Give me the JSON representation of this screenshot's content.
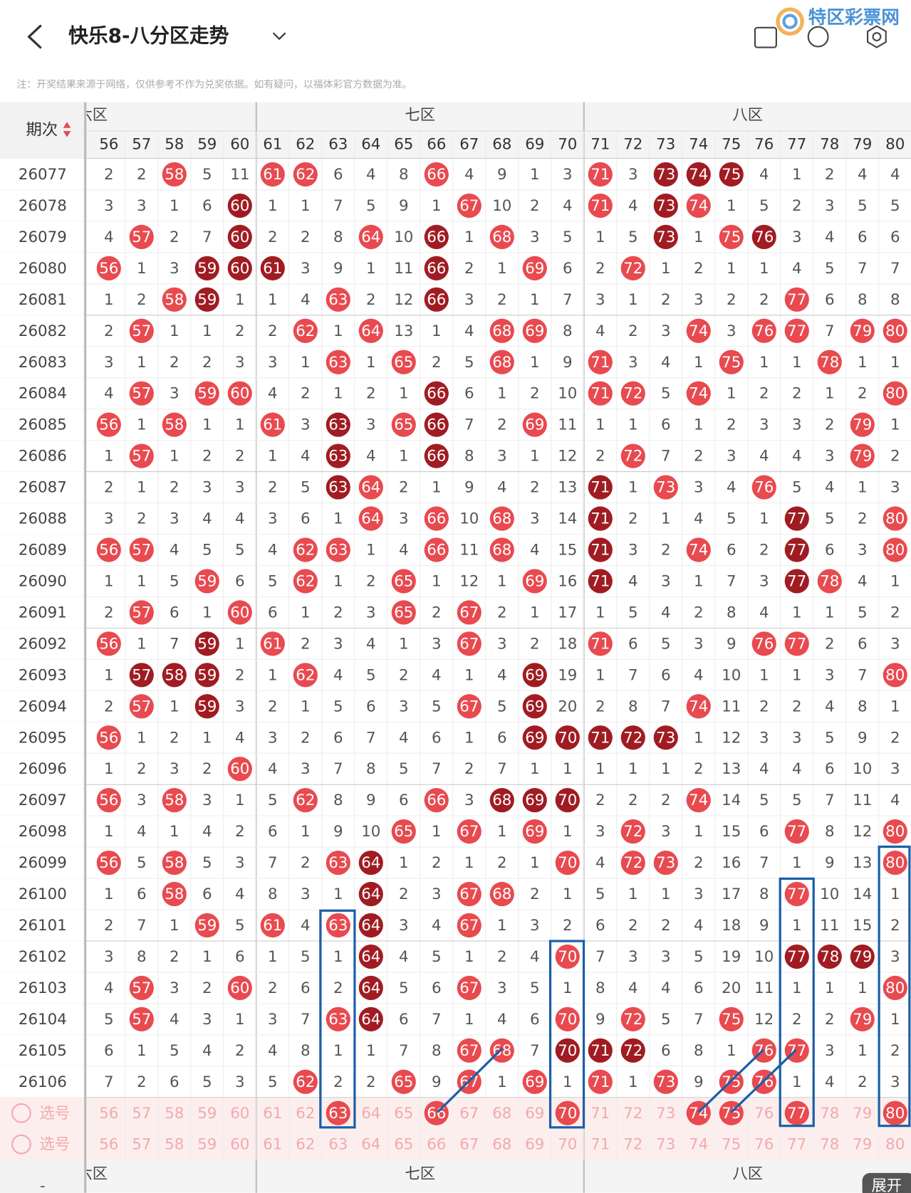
{
  "header": {
    "title": "快乐8-八分区走势",
    "watermark": "特区彩票网"
  },
  "note": "注：开奖结果来源于网络，仅供参考不作为兑奖依据。如有疑问，以福体彩官方数据为准。",
  "table": {
    "period_header": "期次",
    "zones": [
      {
        "name": "六区",
        "columns": [
          56,
          57,
          58,
          59,
          60
        ]
      },
      {
        "name": "七区",
        "columns": [
          61,
          62,
          63,
          64,
          65,
          66,
          67,
          68,
          69,
          70
        ]
      },
      {
        "name": "八区",
        "columns": [
          71,
          72,
          73,
          74,
          75,
          76,
          77,
          78,
          79,
          80
        ]
      }
    ],
    "rows": [
      {
        "period": "26077",
        "cells": [
          2,
          2,
          58,
          5,
          11,
          61,
          62,
          6,
          4,
          8,
          66,
          4,
          9,
          1,
          3,
          71,
          3,
          73,
          74,
          75,
          4,
          1,
          2,
          4,
          4
        ],
        "dark": [
          73,
          74,
          75
        ]
      },
      {
        "period": "26078",
        "cells": [
          3,
          3,
          1,
          6,
          60,
          1,
          1,
          7,
          5,
          9,
          1,
          67,
          10,
          2,
          4,
          71,
          4,
          73,
          74,
          1,
          5,
          2,
          3,
          5,
          5
        ],
        "dark": [
          60,
          73
        ]
      },
      {
        "period": "26079",
        "cells": [
          4,
          57,
          2,
          7,
          60,
          2,
          2,
          8,
          64,
          10,
          66,
          1,
          68,
          3,
          5,
          1,
          5,
          73,
          1,
          75,
          76,
          3,
          4,
          6,
          6
        ],
        "dark": [
          60,
          66,
          73,
          76
        ]
      },
      {
        "period": "26080",
        "cells": [
          56,
          1,
          3,
          59,
          60,
          61,
          3,
          9,
          1,
          11,
          66,
          2,
          1,
          69,
          6,
          2,
          72,
          1,
          2,
          1,
          1,
          4,
          5,
          7,
          7
        ],
        "dark": [
          59,
          60,
          61,
          66
        ]
      },
      {
        "period": "26081",
        "cells": [
          1,
          2,
          58,
          59,
          1,
          1,
          4,
          63,
          2,
          12,
          66,
          3,
          2,
          1,
          7,
          3,
          1,
          2,
          3,
          2,
          2,
          77,
          6,
          8,
          8
        ],
        "dark": [
          59,
          66
        ]
      },
      {
        "period": "26082",
        "cells": [
          2,
          57,
          1,
          1,
          2,
          2,
          62,
          1,
          64,
          13,
          1,
          4,
          68,
          69,
          8,
          4,
          2,
          3,
          74,
          3,
          76,
          77,
          7,
          79,
          80
        ],
        "dark": []
      },
      {
        "period": "26083",
        "cells": [
          3,
          1,
          2,
          2,
          3,
          3,
          1,
          63,
          1,
          65,
          2,
          5,
          68,
          1,
          9,
          71,
          3,
          4,
          1,
          75,
          1,
          1,
          78,
          1,
          1
        ],
        "dark": []
      },
      {
        "period": "26084",
        "cells": [
          4,
          57,
          3,
          59,
          60,
          4,
          2,
          1,
          2,
          1,
          66,
          6,
          1,
          2,
          10,
          71,
          72,
          5,
          74,
          1,
          2,
          2,
          1,
          2,
          80
        ],
        "dark": [
          66
        ]
      },
      {
        "period": "26085",
        "cells": [
          56,
          1,
          58,
          1,
          1,
          61,
          3,
          63,
          3,
          65,
          66,
          7,
          2,
          69,
          11,
          1,
          1,
          6,
          1,
          2,
          3,
          3,
          2,
          79,
          1
        ],
        "dark": [
          63,
          66
        ]
      },
      {
        "period": "26086",
        "cells": [
          1,
          57,
          1,
          2,
          2,
          1,
          4,
          63,
          4,
          1,
          66,
          8,
          3,
          1,
          12,
          2,
          72,
          7,
          2,
          3,
          4,
          4,
          3,
          79,
          2
        ],
        "dark": [
          63,
          66
        ]
      },
      {
        "period": "26087",
        "cells": [
          2,
          1,
          2,
          3,
          3,
          2,
          5,
          63,
          64,
          2,
          1,
          9,
          4,
          2,
          13,
          71,
          1,
          73,
          3,
          4,
          76,
          5,
          4,
          1,
          3
        ],
        "dark": [
          63,
          71
        ]
      },
      {
        "period": "26088",
        "cells": [
          3,
          2,
          3,
          4,
          4,
          3,
          6,
          1,
          64,
          3,
          66,
          10,
          68,
          3,
          14,
          71,
          2,
          1,
          4,
          5,
          1,
          77,
          5,
          2,
          80
        ],
        "dark": [
          71,
          77
        ]
      },
      {
        "period": "26089",
        "cells": [
          56,
          57,
          4,
          5,
          5,
          4,
          62,
          63,
          1,
          4,
          66,
          11,
          68,
          4,
          15,
          71,
          3,
          2,
          74,
          6,
          2,
          77,
          6,
          3,
          80
        ],
        "dark": [
          71,
          77
        ]
      },
      {
        "period": "26090",
        "cells": [
          1,
          1,
          5,
          59,
          6,
          5,
          62,
          1,
          2,
          65,
          1,
          12,
          1,
          69,
          16,
          71,
          4,
          3,
          1,
          7,
          3,
          77,
          78,
          4,
          1
        ],
        "dark": [
          71,
          77
        ]
      },
      {
        "period": "26091",
        "cells": [
          2,
          57,
          6,
          1,
          60,
          6,
          1,
          2,
          3,
          65,
          2,
          67,
          2,
          1,
          17,
          1,
          5,
          4,
          2,
          8,
          4,
          1,
          1,
          5,
          2
        ],
        "dark": []
      },
      {
        "period": "26092",
        "cells": [
          56,
          1,
          7,
          59,
          1,
          61,
          2,
          3,
          4,
          1,
          3,
          67,
          3,
          2,
          18,
          71,
          6,
          5,
          3,
          9,
          76,
          77,
          2,
          6,
          3
        ],
        "dark": [
          59
        ]
      },
      {
        "period": "26093",
        "cells": [
          1,
          57,
          58,
          59,
          2,
          1,
          62,
          4,
          5,
          2,
          4,
          1,
          4,
          69,
          19,
          1,
          7,
          6,
          4,
          10,
          1,
          1,
          3,
          7,
          80
        ],
        "dark": [
          57,
          58,
          59,
          69
        ]
      },
      {
        "period": "26094",
        "cells": [
          2,
          57,
          1,
          59,
          3,
          2,
          1,
          5,
          6,
          3,
          5,
          67,
          5,
          69,
          20,
          2,
          8,
          7,
          74,
          11,
          2,
          2,
          4,
          8,
          1
        ],
        "dark": [
          59,
          69
        ]
      },
      {
        "period": "26095",
        "cells": [
          56,
          1,
          2,
          1,
          4,
          3,
          2,
          6,
          7,
          4,
          6,
          1,
          6,
          69,
          70,
          71,
          72,
          73,
          1,
          12,
          3,
          3,
          5,
          9,
          2
        ],
        "dark": [
          69,
          70,
          71,
          72,
          73
        ]
      },
      {
        "period": "26096",
        "cells": [
          1,
          2,
          3,
          2,
          60,
          4,
          3,
          7,
          8,
          5,
          7,
          2,
          7,
          1,
          1,
          1,
          1,
          1,
          2,
          13,
          4,
          4,
          6,
          10,
          3
        ],
        "dark": []
      },
      {
        "period": "26097",
        "cells": [
          56,
          3,
          58,
          3,
          1,
          5,
          62,
          8,
          9,
          6,
          66,
          3,
          68,
          69,
          70,
          2,
          2,
          2,
          74,
          14,
          5,
          5,
          7,
          11,
          4
        ],
        "dark": [
          68,
          69,
          70
        ]
      },
      {
        "period": "26098",
        "cells": [
          1,
          4,
          1,
          4,
          2,
          6,
          1,
          9,
          10,
          65,
          1,
          67,
          1,
          69,
          1,
          3,
          72,
          3,
          1,
          15,
          6,
          77,
          8,
          12,
          80
        ],
        "dark": []
      },
      {
        "period": "26099",
        "cells": [
          56,
          5,
          58,
          5,
          3,
          7,
          2,
          63,
          64,
          1,
          2,
          1,
          2,
          1,
          70,
          4,
          72,
          73,
          2,
          16,
          7,
          1,
          9,
          13,
          80
        ],
        "dark": [
          64
        ]
      },
      {
        "period": "26100",
        "cells": [
          1,
          6,
          58,
          6,
          4,
          8,
          3,
          1,
          64,
          2,
          3,
          67,
          68,
          2,
          1,
          5,
          1,
          1,
          3,
          17,
          8,
          77,
          10,
          14,
          1
        ],
        "dark": [
          64
        ]
      },
      {
        "period": "26101",
        "cells": [
          2,
          7,
          1,
          59,
          5,
          61,
          4,
          63,
          64,
          3,
          4,
          67,
          1,
          3,
          2,
          6,
          2,
          2,
          4,
          18,
          9,
          1,
          11,
          15,
          2
        ],
        "dark": [
          64
        ]
      },
      {
        "period": "26102",
        "cells": [
          3,
          8,
          2,
          1,
          6,
          1,
          5,
          1,
          64,
          4,
          5,
          1,
          2,
          4,
          70,
          7,
          3,
          3,
          5,
          19,
          10,
          77,
          78,
          79,
          3
        ],
        "dark": [
          64,
          77,
          78,
          79
        ]
      },
      {
        "period": "26103",
        "cells": [
          4,
          57,
          3,
          2,
          60,
          2,
          6,
          2,
          64,
          5,
          6,
          67,
          3,
          5,
          1,
          8,
          4,
          4,
          6,
          20,
          11,
          1,
          1,
          1,
          80
        ],
        "dark": [
          64
        ]
      },
      {
        "period": "26104",
        "cells": [
          5,
          57,
          4,
          3,
          1,
          3,
          7,
          63,
          64,
          6,
          7,
          1,
          4,
          6,
          70,
          9,
          72,
          5,
          7,
          75,
          12,
          2,
          2,
          79,
          1
        ],
        "dark": [
          64
        ]
      },
      {
        "period": "26105",
        "cells": [
          6,
          1,
          5,
          4,
          2,
          4,
          8,
          1,
          1,
          7,
          8,
          67,
          68,
          7,
          70,
          71,
          72,
          6,
          8,
          1,
          76,
          77,
          3,
          1,
          2
        ],
        "dark": [
          70,
          71,
          72
        ]
      },
      {
        "period": "26106",
        "cells": [
          7,
          2,
          6,
          5,
          3,
          5,
          62,
          2,
          2,
          65,
          9,
          67,
          1,
          69,
          1,
          71,
          1,
          73,
          9,
          75,
          76,
          1,
          4,
          2,
          3
        ],
        "dark": []
      }
    ],
    "select_rows": [
      {
        "label": "选号",
        "picked": [
          63,
          66,
          70,
          74,
          75,
          77,
          80
        ]
      },
      {
        "label": "选号",
        "picked": []
      }
    ]
  },
  "footer": {
    "expand": "展开",
    "dash": "-"
  }
}
